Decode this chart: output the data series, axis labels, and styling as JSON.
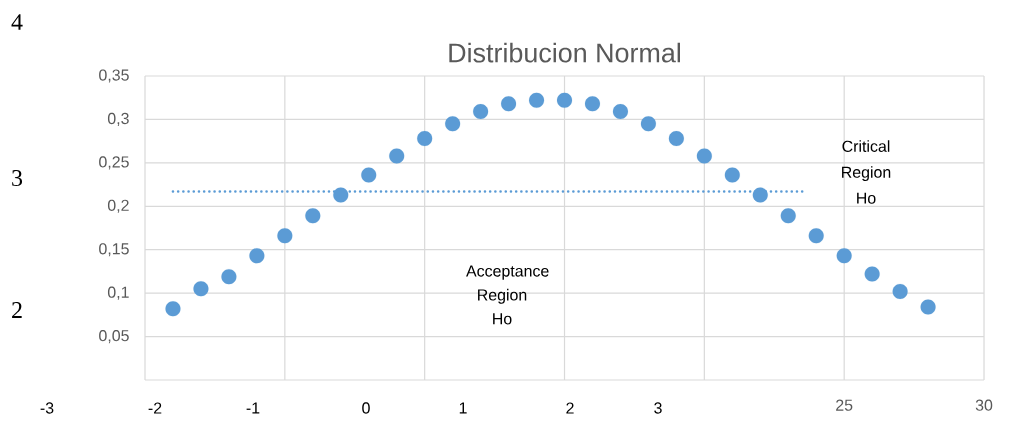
{
  "chart_data": {
    "type": "scatter",
    "title": "Distribucion Normal",
    "grid": true,
    "x": [
      1,
      2,
      3,
      4,
      5,
      6,
      7,
      8,
      9,
      10,
      11,
      12,
      13,
      14,
      15,
      16,
      17,
      18,
      19,
      20,
      21,
      22,
      23,
      24,
      25,
      26,
      27,
      28
    ],
    "series": [
      {
        "color": "#5b9bd5",
        "marker": "circle",
        "values": [
          0.082,
          0.105,
          0.119,
          0.143,
          0.166,
          0.189,
          0.213,
          0.236,
          0.258,
          0.278,
          0.295,
          0.309,
          0.318,
          0.322,
          0.322,
          0.318,
          0.309,
          0.295,
          0.278,
          0.258,
          0.236,
          0.213,
          0.189,
          0.166,
          0.143,
          0.122,
          0.102,
          0.084
        ]
      },
      {
        "type": "line",
        "x": [
          1,
          23.5
        ],
        "values": [
          0.217,
          0.217
        ],
        "color": "#5b9bd5",
        "line_style": "dotted",
        "marker": "none"
      }
    ],
    "xlim": [
      0,
      30
    ],
    "ylim": [
      0,
      0.35
    ],
    "xticks": [
      {
        "value": 0,
        "label": null
      },
      {
        "value": 5,
        "label": null
      },
      {
        "value": 10,
        "label": null
      },
      {
        "value": 15,
        "label": null
      },
      {
        "value": 20,
        "label": null
      },
      25,
      30
    ],
    "yticks": [
      {
        "value": 0,
        "label": null
      },
      {
        "value": 0.05,
        "label": "0,05"
      },
      {
        "value": 0.1,
        "label": "0,1"
      },
      {
        "value": 0.15,
        "label": "0,15"
      },
      {
        "value": 0.2,
        "label": "0,2"
      },
      {
        "value": 0.25,
        "label": "0,25"
      },
      {
        "value": 0.3,
        "label": "0,3"
      },
      {
        "value": 0.35,
        "label": "0,35"
      }
    ],
    "annotations": [
      "Acceptance Region Ho",
      "Critical Region Ho",
      "-3",
      "-2",
      "-1",
      "0",
      "1",
      "2",
      "3",
      "4",
      "3",
      "2"
    ]
  }
}
